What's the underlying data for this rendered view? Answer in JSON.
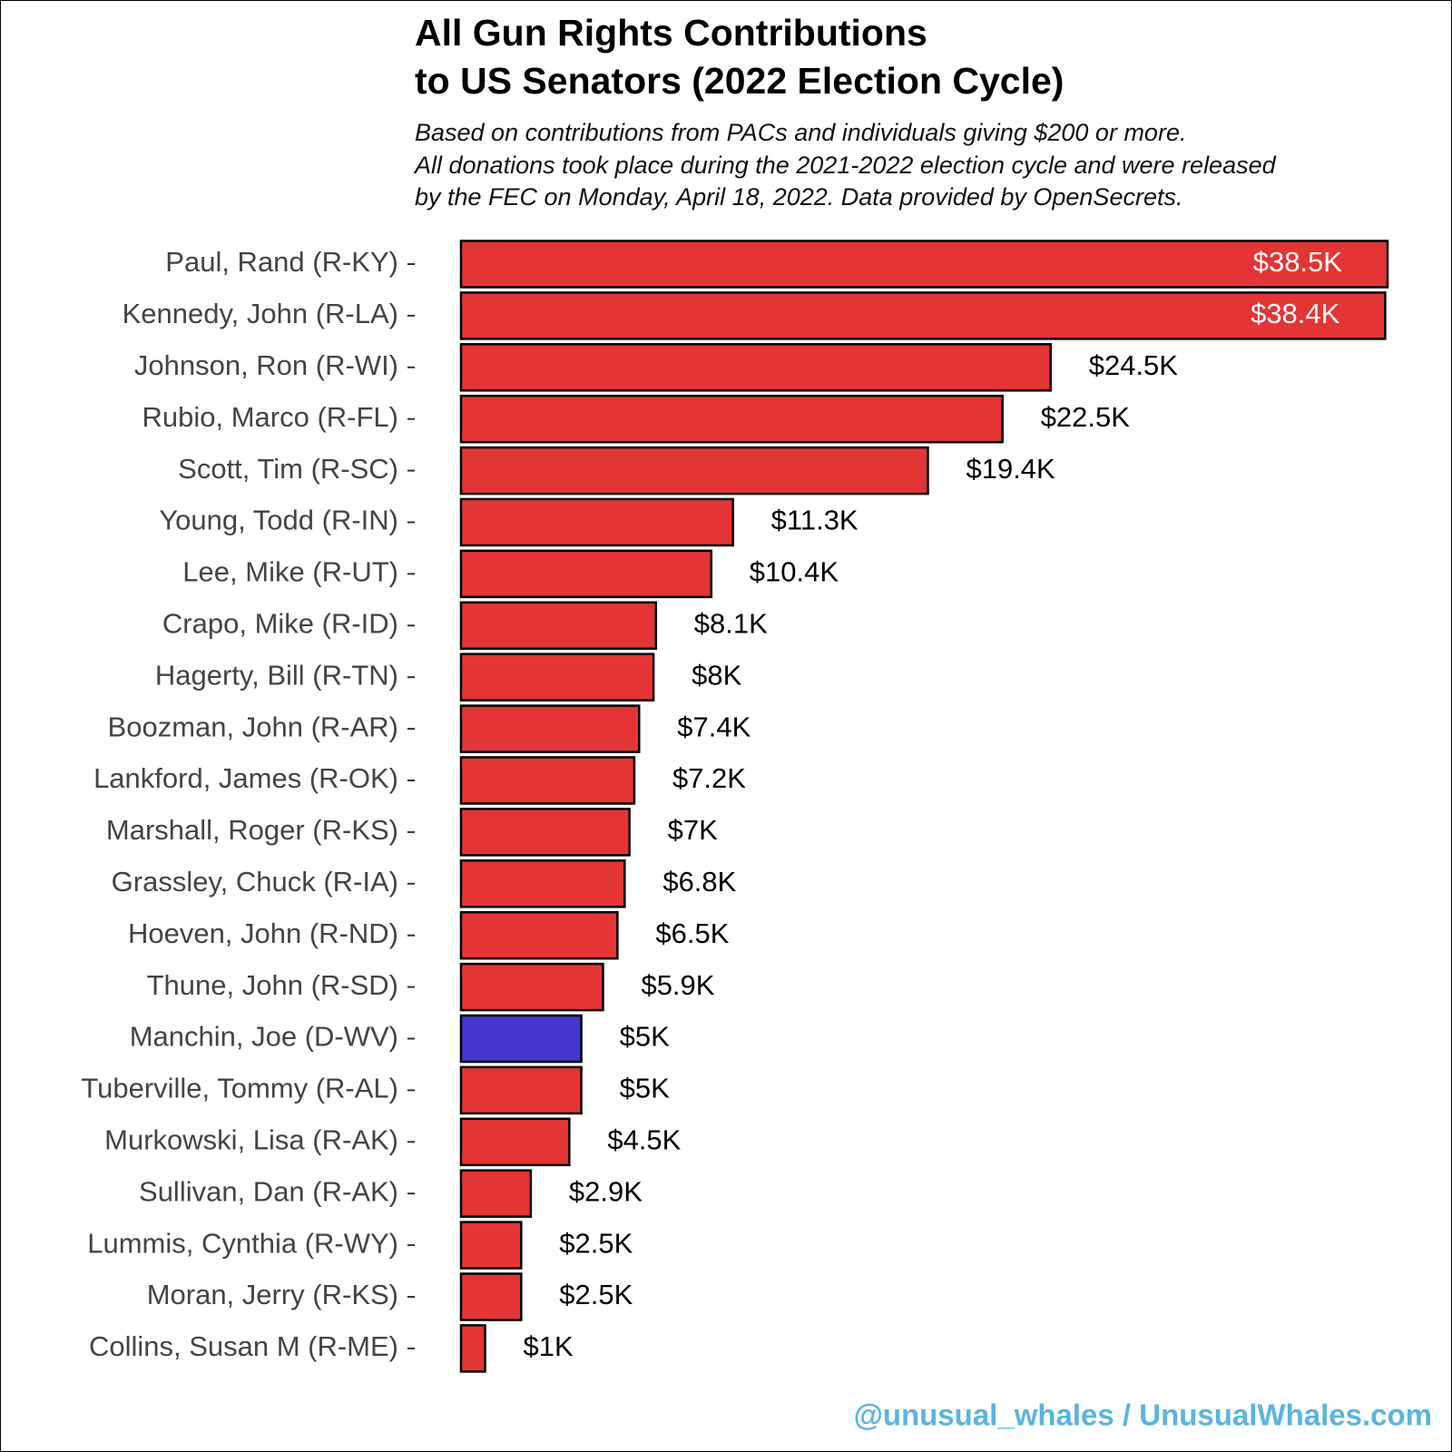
{
  "chart_data": {
    "type": "bar",
    "orientation": "horizontal",
    "title": [
      "All Gun Rights Contributions",
      "to US Senators (2022 Election Cycle)"
    ],
    "subtitle": [
      "Based on contributions from PACs and individuals giving $200 or more.",
      "All donations took place during the 2021-2022 election cycle and were released",
      "by the FEC on Monday, April 18, 2022. Data provided by OpenSecrets."
    ],
    "categories": [
      "Paul, Rand (R-KY)",
      "Kennedy, John (R-LA)",
      "Johnson, Ron (R-WI)",
      "Rubio, Marco (R-FL)",
      "Scott, Tim (R-SC)",
      "Young, Todd (R-IN)",
      "Lee, Mike (R-UT)",
      "Crapo, Mike (R-ID)",
      "Hagerty, Bill (R-TN)",
      "Boozman, John (R-AR)",
      "Lankford, James (R-OK)",
      "Marshall, Roger (R-KS)",
      "Grassley, Chuck (R-IA)",
      "Hoeven, John (R-ND)",
      "Thune, John (R-SD)",
      "Manchin, Joe (D-WV)",
      "Tuberville, Tommy (R-AL)",
      "Murkowski, Lisa (R-AK)",
      "Sullivan, Dan (R-AK)",
      "Lummis, Cynthia (R-WY)",
      "Moran, Jerry (R-KS)",
      "Collins, Susan M (R-ME)"
    ],
    "values": [
      38.5,
      38.4,
      24.5,
      22.5,
      19.4,
      11.3,
      10.4,
      8.1,
      8,
      7.4,
      7.2,
      7,
      6.8,
      6.5,
      5.9,
      5,
      5,
      4.5,
      2.9,
      2.5,
      2.5,
      1
    ],
    "value_labels": [
      "$38.5K",
      "$38.4K",
      "$24.5K",
      "$22.5K",
      "$19.4K",
      "$11.3K",
      "$10.4K",
      "$8.1K",
      "$8K",
      "$7.4K",
      "$7.2K",
      "$7K",
      "$6.8K",
      "$6.5K",
      "$5.9K",
      "$5K",
      "$5K",
      "$4.5K",
      "$2.9K",
      "$2.5K",
      "$2.5K",
      "$1K"
    ],
    "colors": [
      "#e33535",
      "#e33535",
      "#e33535",
      "#e33535",
      "#e33535",
      "#e33535",
      "#e33535",
      "#e33535",
      "#e33535",
      "#e33535",
      "#e33535",
      "#e33535",
      "#e33535",
      "#e33535",
      "#e33535",
      "#4236cc",
      "#e33535",
      "#e33535",
      "#e33535",
      "#e33535",
      "#e33535",
      "#e33535"
    ],
    "credit": "@unusual_whales / UnusualWhales.com"
  }
}
